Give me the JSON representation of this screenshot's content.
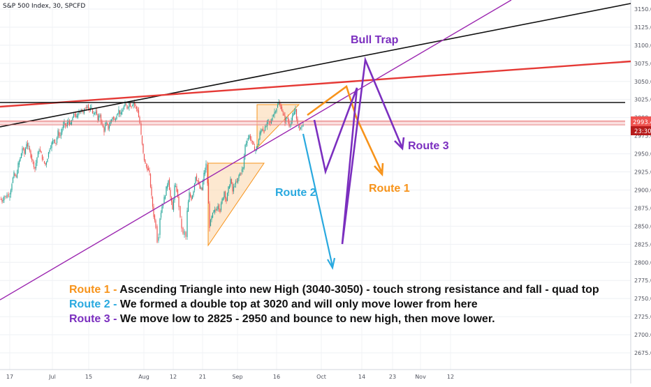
{
  "header": {
    "symbol_text": "S&P 500 Index, 30, SPCFD"
  },
  "price_tags": {
    "last_price": "2993.4",
    "countdown": "23:30"
  },
  "colors": {
    "up": "#26a69a",
    "down": "#ef5350",
    "orange": "#f7931a",
    "blue": "#29a9df",
    "purple": "#7b2fbf",
    "trendline": "#9c27b0",
    "red_line": "#e53935",
    "black_line": "#111111",
    "triangle_fill": "#fbd9b0",
    "triangle_stroke": "#f7931a",
    "tag_red": "#ef5350",
    "tag_dark": "#b71c1c"
  },
  "annotations": {
    "bull_trap": "Bull Trap",
    "route1": "Route 1",
    "route2": "Route 2",
    "route3": "Route 3"
  },
  "notes": [
    {
      "prefix": "Route 1 - ",
      "text": "Ascending Triangle into new High (3040-3050) - touch strong resistance and fall - quad top",
      "color": "#f7931a"
    },
    {
      "prefix": "Route 2 - ",
      "text": "We formed a double top at 3020 and will only move lower from here",
      "color": "#29a9df"
    },
    {
      "prefix": "Route 3 - ",
      "text": "We move low to 2825 - 2950  and bounce to new high, then move lower.",
      "color": "#7b2fbf"
    }
  ],
  "chart_data": {
    "type": "candlestick",
    "title": "S&P 500 Index, 30, SPCFD",
    "ylim": [
      2650,
      3160
    ],
    "y_ticks": [
      "3150.0",
      "3125.0",
      "3100.0",
      "3075.0",
      "3050.0",
      "3025.0",
      "3000.0",
      "2975.0",
      "2950.0",
      "2925.0",
      "2900.0",
      "2875.0",
      "2850.0",
      "2825.0",
      "2800.0",
      "2775.0",
      "2750.0",
      "2725.0",
      "2700.0",
      "2675.0"
    ],
    "y_tick_values": [
      3150,
      3125,
      3100,
      3075,
      3050,
      3025,
      3000,
      2975,
      2950,
      2925,
      2900,
      2875,
      2850,
      2825,
      2800,
      2775,
      2750,
      2725,
      2700,
      2675
    ],
    "x_ticks": [
      "17",
      "Jul",
      "15",
      "Aug",
      "12",
      "21",
      "Sep",
      "16",
      "Oct",
      "14",
      "23",
      "Nov",
      "12"
    ],
    "price_path": [
      [
        0,
        2888
      ],
      [
        3,
        2885
      ],
      [
        6,
        2892
      ],
      [
        8,
        2889
      ],
      [
        10,
        2895
      ],
      [
        12,
        2890
      ],
      [
        14,
        2894
      ],
      [
        17,
        2910
      ],
      [
        20,
        2922
      ],
      [
        23,
        2917
      ],
      [
        26,
        2935
      ],
      [
        29,
        2944
      ],
      [
        32,
        2958
      ],
      [
        35,
        2950
      ],
      [
        38,
        2965
      ],
      [
        41,
        2958
      ],
      [
        44,
        2948
      ],
      [
        47,
        2939
      ],
      [
        50,
        2930
      ],
      [
        53,
        2945
      ],
      [
        56,
        2956
      ],
      [
        59,
        2949
      ],
      [
        62,
        2940
      ],
      [
        65,
        2935
      ],
      [
        68,
        2945
      ],
      [
        71,
        2958
      ],
      [
        74,
        2964
      ],
      [
        77,
        2970
      ],
      [
        80,
        2965
      ],
      [
        83,
        2980
      ],
      [
        86,
        2975
      ],
      [
        89,
        2985
      ],
      [
        92,
        2992
      ],
      [
        95,
        2988
      ],
      [
        98,
        2996
      ],
      [
        101,
        2990
      ],
      [
        104,
        3000
      ],
      [
        107,
        3005
      ],
      [
        110,
        3000
      ],
      [
        113,
        3008
      ],
      [
        116,
        3012
      ],
      [
        119,
        3006
      ],
      [
        122,
        3014
      ],
      [
        125,
        3018
      ],
      [
        128,
        3010
      ],
      [
        131,
        3012
      ],
      [
        134,
        3005
      ],
      [
        137,
        3010
      ],
      [
        140,
        2996
      ],
      [
        143,
        3004
      ],
      [
        146,
        2990
      ],
      [
        149,
        2982
      ],
      [
        152,
        2992
      ],
      [
        155,
        2985
      ],
      [
        158,
        2994
      ],
      [
        161,
        3001
      ],
      [
        164,
        2996
      ],
      [
        167,
        3005
      ],
      [
        170,
        3010
      ],
      [
        173,
        3004
      ],
      [
        176,
        3012
      ],
      [
        179,
        3018
      ],
      [
        182,
        3014
      ],
      [
        185,
        3020
      ],
      [
        188,
        3016
      ],
      [
        191,
        3022
      ],
      [
        194,
        3015
      ],
      [
        197,
        3010
      ],
      [
        200,
        2992
      ],
      [
        202,
        2975
      ],
      [
        205,
        2950
      ],
      [
        208,
        2935
      ],
      [
        211,
        2930
      ],
      [
        214,
        2922
      ],
      [
        217,
        2890
      ],
      [
        220,
        2865
      ],
      [
        223,
        2850
      ],
      [
        225,
        2830
      ],
      [
        227,
        2838
      ],
      [
        229,
        2862
      ],
      [
        232,
        2878
      ],
      [
        235,
        2888
      ],
      [
        238,
        2902
      ],
      [
        241,
        2915
      ],
      [
        244,
        2890
      ],
      [
        247,
        2872
      ],
      [
        250,
        2905
      ],
      [
        253,
        2900
      ],
      [
        256,
        2878
      ],
      [
        258,
        2860
      ],
      [
        260,
        2848
      ],
      [
        262,
        2838
      ],
      [
        264,
        2842
      ],
      [
        266,
        2835
      ],
      [
        268,
        2870
      ],
      [
        271,
        2895
      ],
      [
        274,
        2888
      ],
      [
        277,
        2900
      ],
      [
        280,
        2920
      ],
      [
        283,
        2912
      ],
      [
        286,
        2902
      ],
      [
        289,
        2900
      ],
      [
        292,
        2922
      ],
      [
        295,
        2935
      ],
      [
        297,
        2910
      ],
      [
        300,
        2850
      ],
      [
        303,
        2862
      ],
      [
        306,
        2870
      ],
      [
        309,
        2872
      ],
      [
        312,
        2880
      ],
      [
        315,
        2872
      ],
      [
        318,
        2886
      ],
      [
        321,
        2898
      ],
      [
        324,
        2885
      ],
      [
        327,
        2902
      ],
      [
        330,
        2915
      ],
      [
        333,
        2898
      ],
      [
        336,
        2908
      ],
      [
        339,
        2910
      ],
      [
        342,
        2920
      ],
      [
        345,
        2925
      ],
      [
        348,
        2930
      ],
      [
        351,
        2962
      ],
      [
        354,
        2970
      ],
      [
        357,
        2975
      ],
      [
        360,
        2968
      ],
      [
        363,
        2960
      ],
      [
        366,
        2955
      ],
      [
        369,
        2962
      ],
      [
        372,
        2978
      ],
      [
        375,
        2985
      ],
      [
        378,
        2982
      ],
      [
        381,
        2988
      ],
      [
        384,
        2995
      ],
      [
        387,
        2992
      ],
      [
        390,
        3002
      ],
      [
        393,
        3008
      ],
      [
        396,
        3014
      ],
      [
        399,
        3020
      ],
      [
        402,
        3015
      ],
      [
        405,
        3006
      ],
      [
        408,
        2995
      ],
      [
        411,
        3000
      ],
      [
        414,
        2990
      ],
      [
        417,
        2996
      ],
      [
        420,
        3004
      ],
      [
        423,
        3012
      ],
      [
        426,
        2990
      ],
      [
        429,
        2985
      ],
      [
        432,
        2988
      ],
      [
        434,
        2993.4
      ]
    ],
    "lines": {
      "horizontal_resistance": 3020,
      "last_price_line": 2993.4,
      "support_band": [
        2990,
        2996
      ]
    }
  }
}
